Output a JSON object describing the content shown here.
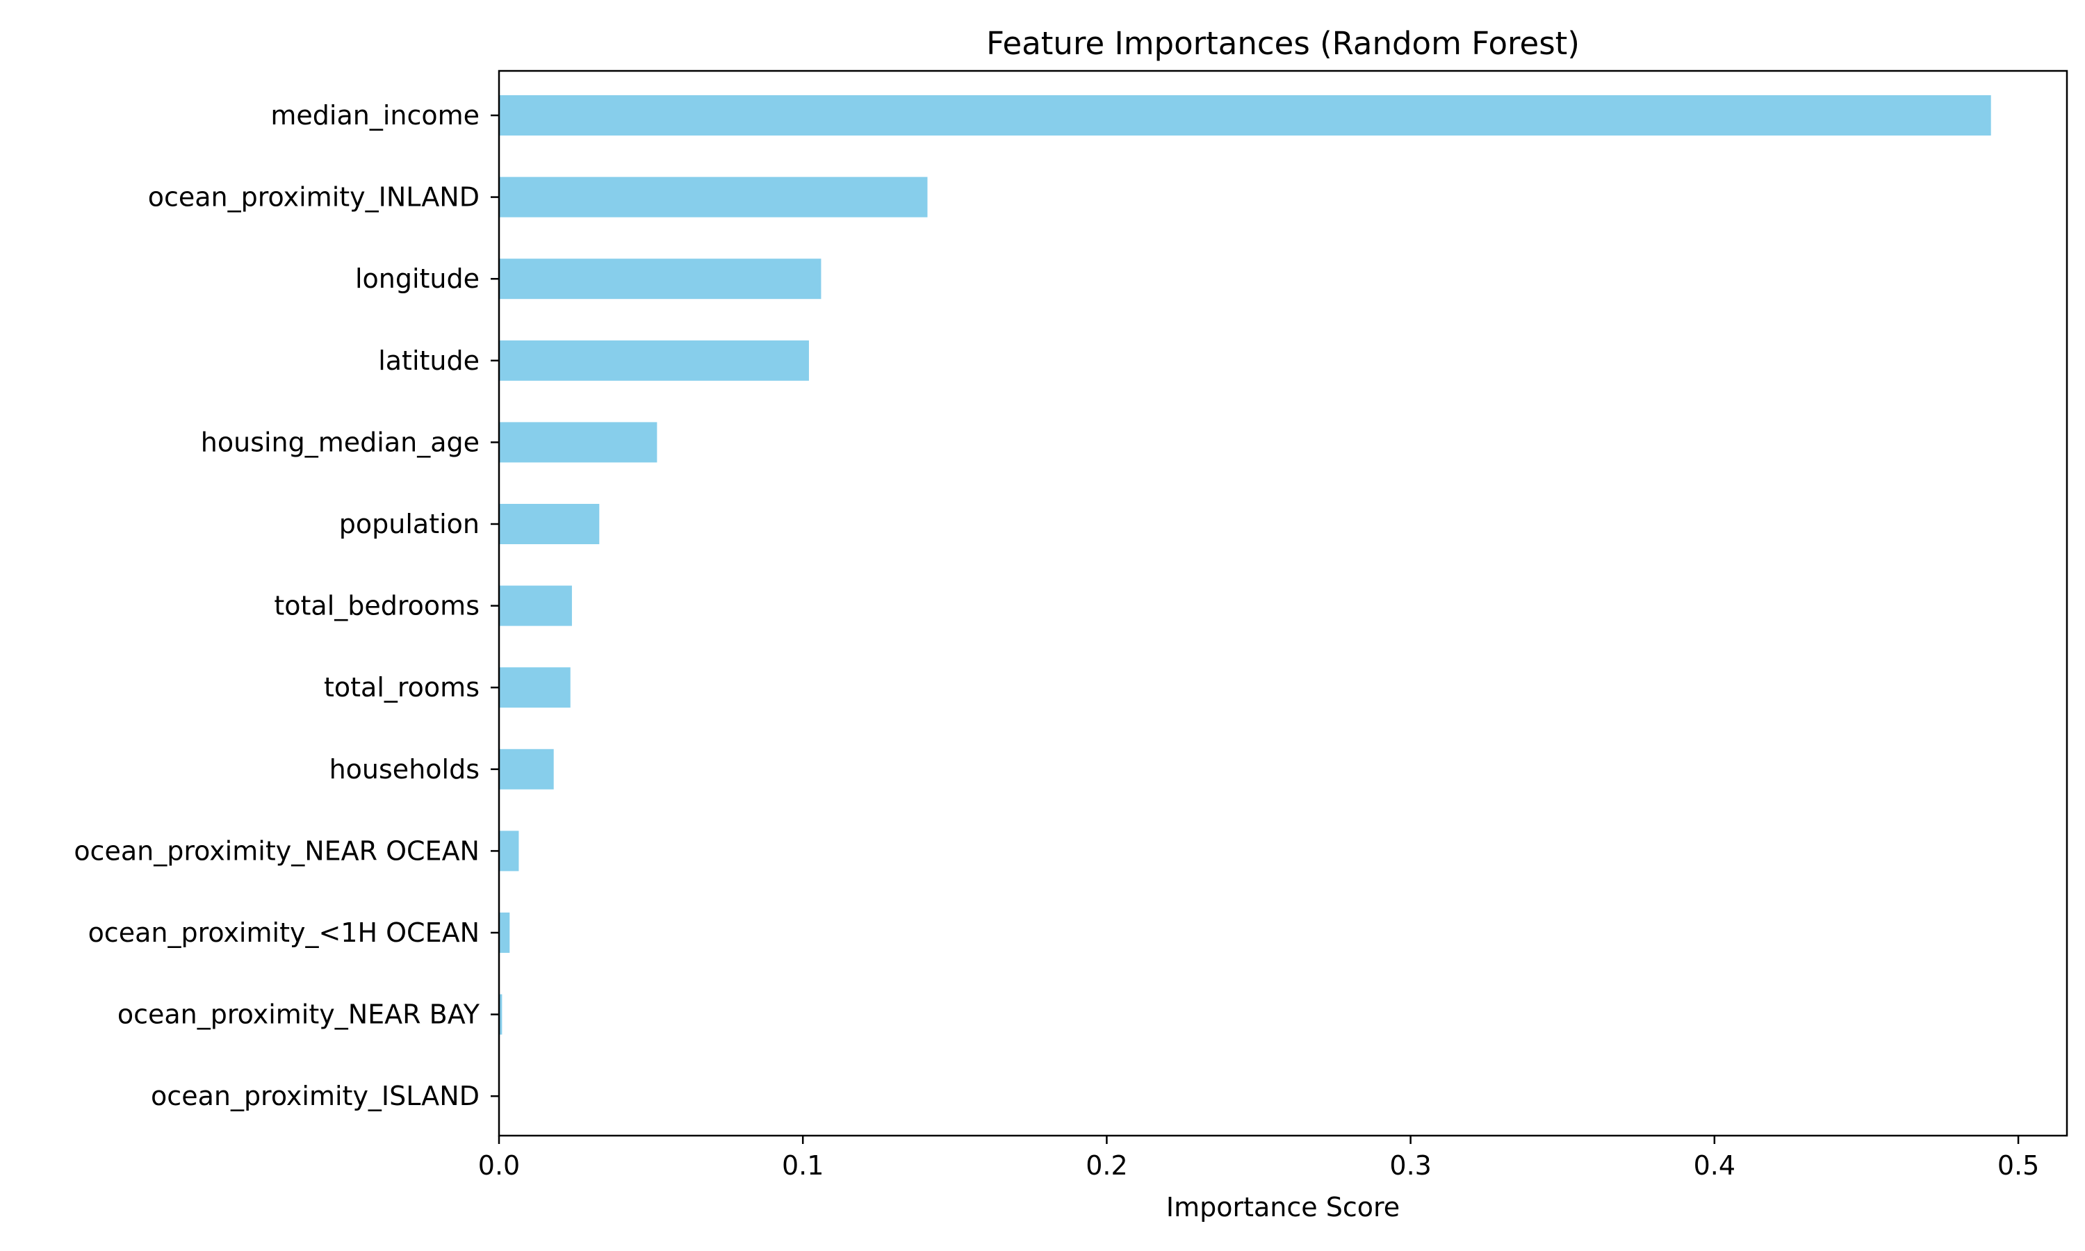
{
  "chart_data": {
    "type": "bar",
    "orientation": "horizontal",
    "title": "Feature Importances (Random Forest)",
    "xlabel": "Importance Score",
    "ylabel": "",
    "xlim": [
      0,
      0.516
    ],
    "x_ticks": [
      0.0,
      0.1,
      0.2,
      0.3,
      0.4,
      0.5
    ],
    "x_tick_labels": [
      "0.0",
      "0.1",
      "0.2",
      "0.3",
      "0.4",
      "0.5"
    ],
    "categories": [
      "median_income",
      "ocean_proximity_INLAND",
      "longitude",
      "latitude",
      "housing_median_age",
      "population",
      "total_bedrooms",
      "total_rooms",
      "households",
      "ocean_proximity_NEAR OCEAN",
      "ocean_proximity_<1H OCEAN",
      "ocean_proximity_NEAR BAY",
      "ocean_proximity_ISLAND"
    ],
    "values": [
      0.491,
      0.141,
      0.106,
      0.102,
      0.052,
      0.033,
      0.024,
      0.0235,
      0.018,
      0.0065,
      0.0035,
      0.001,
      0.0001
    ],
    "bar_color": "#87ceeb",
    "grid": false,
    "legend": "none"
  }
}
